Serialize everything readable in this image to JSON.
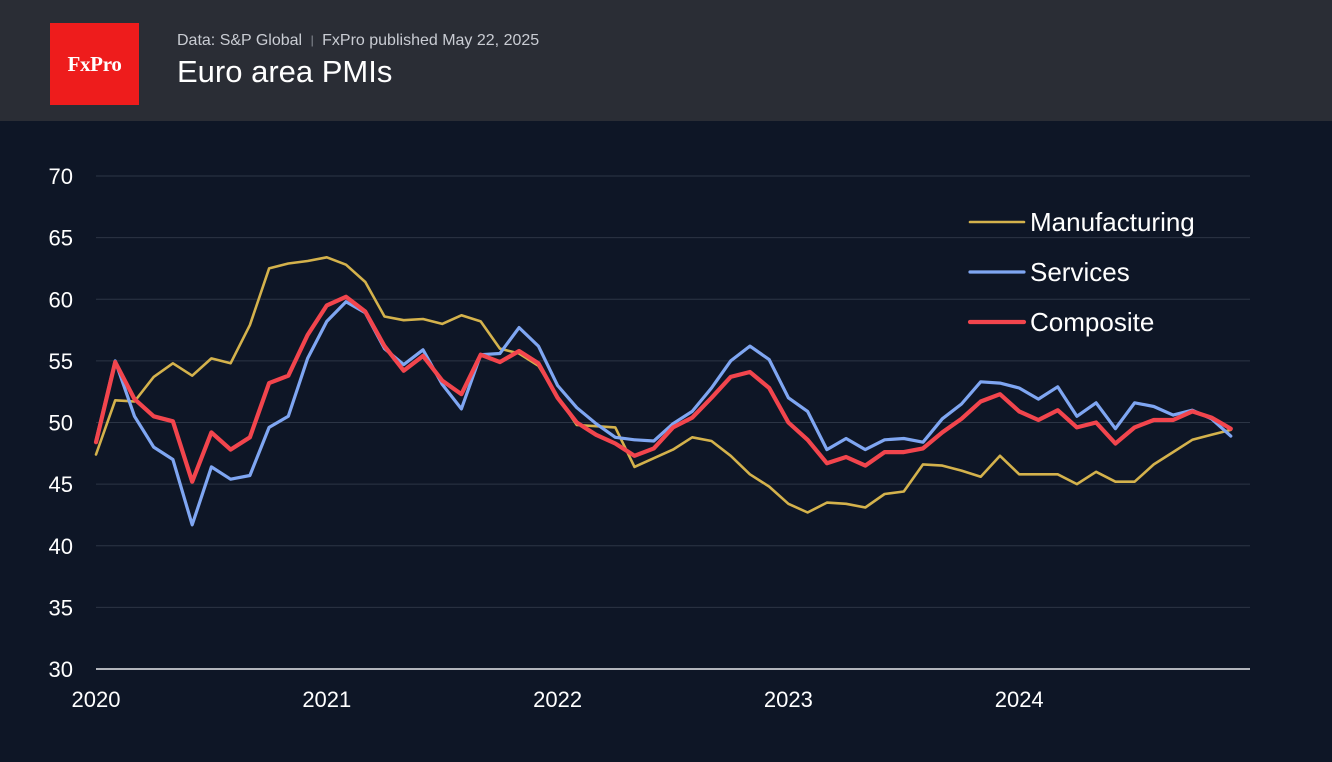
{
  "header": {
    "logo_text": "FxPro",
    "source": "Data: S&P Global",
    "separator": "|",
    "published": "FxPro published May 22, 2025",
    "title": "Euro area PMIs"
  },
  "colors": {
    "background": "#0e1626",
    "header_bg": "#2a2d35",
    "logo_bg": "#ee1c1c",
    "grid": "#2c3545",
    "axis": "#e8eaee",
    "text": "#ffffff"
  },
  "chart_data": {
    "type": "line",
    "title": "Euro area PMIs",
    "ylim": [
      30,
      70
    ],
    "yticks": [
      30,
      35,
      40,
      45,
      50,
      55,
      60,
      65,
      70
    ],
    "xlim": [
      2020.0,
      2025.0
    ],
    "xticks": [
      2020,
      2021,
      2022,
      2023,
      2024
    ],
    "grid": true,
    "legend_position": "top-right",
    "series": [
      {
        "name": "Manufacturing",
        "color": "#d4b24c",
        "values": [
          47.4,
          51.8,
          51.7,
          53.7,
          54.8,
          53.8,
          55.2,
          54.8,
          57.9,
          62.5,
          62.9,
          63.1,
          63.4,
          62.8,
          61.4,
          58.6,
          58.3,
          58.4,
          58.0,
          58.7,
          58.2,
          56.0,
          55.6,
          54.6,
          52.1,
          49.8,
          49.7,
          49.6,
          46.4,
          47.1,
          47.8,
          48.8,
          48.5,
          47.3,
          45.8,
          44.8,
          43.4,
          42.7,
          43.5,
          43.4,
          43.1,
          44.2,
          44.4,
          46.6,
          46.5,
          46.1,
          45.6,
          47.3,
          45.8,
          45.8,
          45.8,
          45.0,
          46.0,
          45.2,
          45.2,
          46.6,
          47.6,
          48.6,
          49.0,
          49.4
        ]
      },
      {
        "name": "Services",
        "color": "#7fa6f2",
        "values": [
          48.5,
          55.0,
          50.5,
          48.0,
          47.0,
          41.7,
          46.4,
          45.4,
          45.7,
          49.6,
          50.5,
          55.2,
          58.2,
          59.8,
          58.9,
          56.0,
          54.7,
          55.9,
          53.1,
          51.1,
          55.5,
          55.6,
          57.7,
          56.2,
          53.0,
          51.2,
          49.9,
          48.8,
          48.6,
          48.5,
          49.9,
          50.9,
          52.8,
          55.0,
          56.2,
          55.1,
          52.0,
          50.9,
          47.8,
          48.7,
          47.8,
          48.6,
          48.7,
          48.4,
          50.3,
          51.5,
          53.3,
          53.2,
          52.8,
          51.9,
          52.9,
          50.5,
          51.6,
          49.5,
          51.6,
          51.3,
          50.6,
          51.0,
          50.3,
          48.9
        ]
      },
      {
        "name": "Composite",
        "color": "#f2454d",
        "values": [
          48.4,
          54.9,
          51.9,
          50.5,
          50.1,
          45.2,
          49.2,
          47.8,
          48.8,
          53.2,
          53.8,
          57.1,
          59.5,
          60.2,
          59.0,
          56.2,
          54.2,
          55.4,
          53.4,
          52.3,
          55.5,
          54.9,
          55.8,
          54.8,
          52.0,
          50.0,
          49.0,
          48.3,
          47.3,
          47.9,
          49.6,
          50.4,
          52.0,
          53.7,
          54.1,
          52.8,
          50.0,
          48.6,
          46.7,
          47.2,
          46.5,
          47.6,
          47.6,
          47.9,
          49.2,
          50.3,
          51.7,
          52.3,
          50.9,
          50.2,
          51.0,
          49.6,
          50.0,
          48.3,
          49.6,
          50.2,
          50.2,
          50.9,
          50.4,
          49.5
        ]
      }
    ]
  }
}
